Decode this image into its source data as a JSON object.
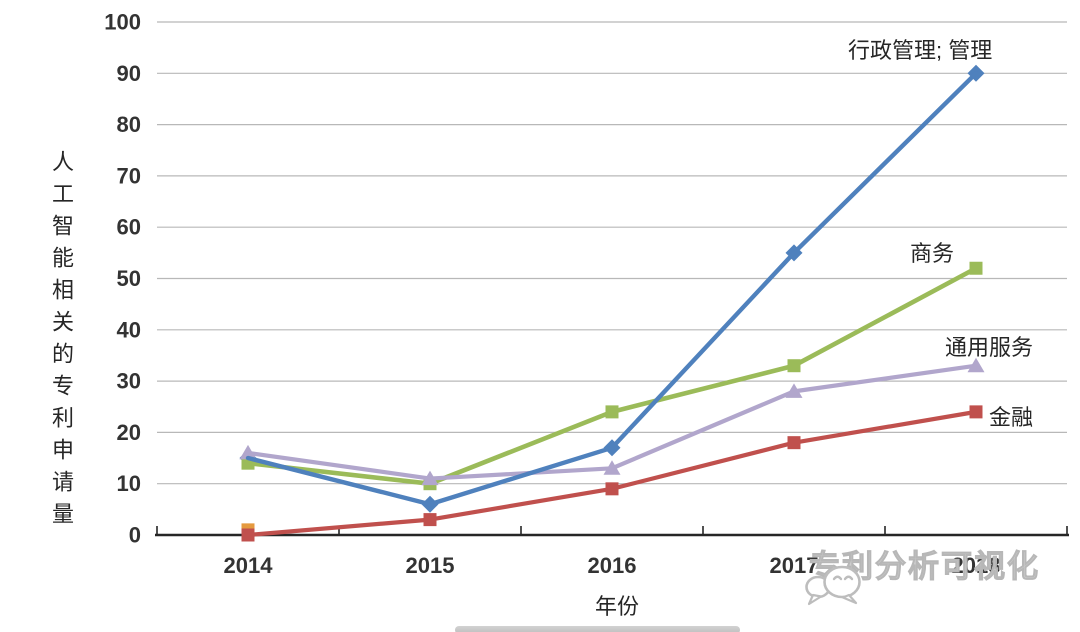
{
  "page": {
    "background": "#ffffff"
  },
  "watermark": {
    "text": "专利分析可视化",
    "icon": "wechat-chat-bubbles",
    "color": "#c4c4c4"
  },
  "chart_data": {
    "type": "line",
    "title": "",
    "xlabel": "年份",
    "ylabel": "人工智能相关的专利申请量",
    "categories": [
      "2014",
      "2015",
      "2016",
      "2017",
      "2018"
    ],
    "series": [
      {
        "name": "行政管理; 管理",
        "values": [
          15,
          6,
          17,
          55,
          90
        ],
        "color": "#4f81bd",
        "marker": "diamond"
      },
      {
        "name": "商务",
        "values": [
          14,
          10,
          24,
          33,
          52
        ],
        "color": "#9bbb59",
        "marker": "square"
      },
      {
        "name": "通用服务",
        "values": [
          16,
          11,
          13,
          28,
          33
        ],
        "color": "#b1a6cc",
        "marker": "triangle"
      },
      {
        "name": "金融",
        "values": [
          0,
          3,
          9,
          18,
          24
        ],
        "color": "#c0504d",
        "marker": "square"
      }
    ],
    "extra_point": {
      "category": "2014",
      "value": 1,
      "color": "#e59a3f",
      "marker": "square"
    },
    "ylim": [
      0,
      100
    ],
    "y_ticks": [
      0,
      10,
      20,
      30,
      40,
      50,
      60,
      70,
      80,
      90,
      100
    ],
    "grid": "horizontal",
    "legend": "inline-labels-right-of-lines",
    "axis_color": "#262626",
    "gridline_color": "#b8b8b8",
    "tick_label_color": "#333333"
  }
}
